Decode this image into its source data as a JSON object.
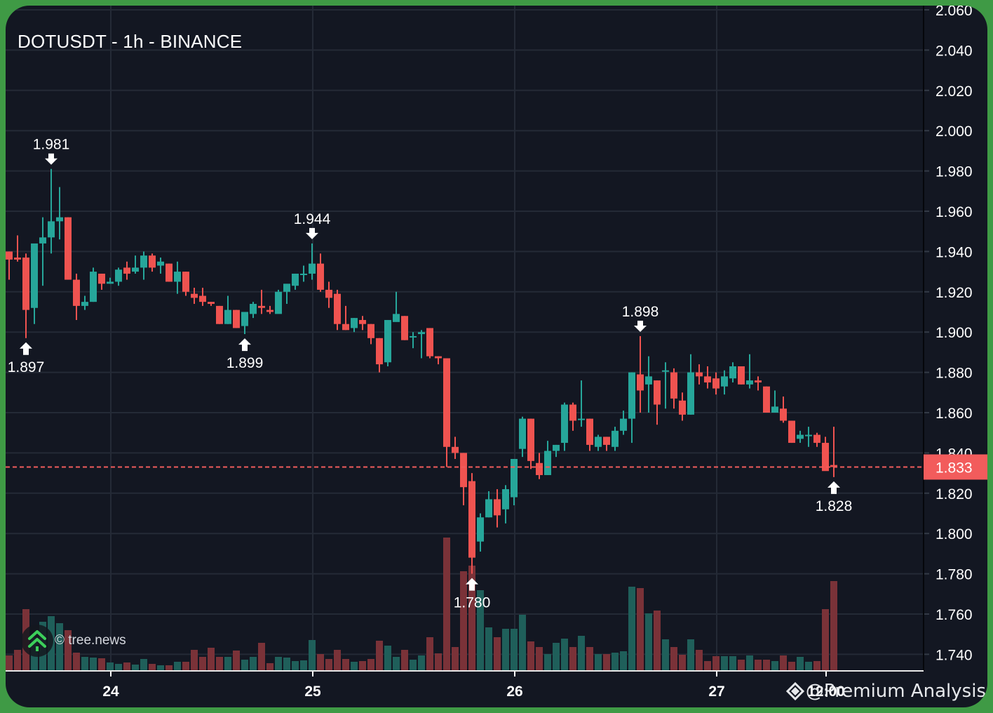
{
  "title": "DOTUSDT - 1h - BINANCE",
  "colors": {
    "background": "#131722",
    "frame": "#3f9a45",
    "up": "#26a69a",
    "down": "#ef5350",
    "up_volume": "#1f5f5a",
    "down_volume": "#7a3238",
    "grid": "#242a36",
    "last_price": "#f25c5c"
  },
  "last_price_label": "1.833",
  "watermark": {
    "text": "© tree.news",
    "icon": "tree-arrows-icon"
  },
  "footer": {
    "text": "@Premium Analysis",
    "icon": "diamond-logo-icon"
  },
  "chart_data": {
    "type": "candlestick",
    "title": "DOTUSDT - 1h - BINANCE",
    "xlabel": "",
    "ylabel": "",
    "ylim": [
      1.734,
      2.062
    ],
    "y_ticks": [
      "2.060",
      "2.040",
      "2.020",
      "2.000",
      "1.980",
      "1.960",
      "1.940",
      "1.920",
      "1.900",
      "1.880",
      "1.860",
      "1.840",
      "1.820",
      "1.800",
      "1.780",
      "1.760",
      "1.740"
    ],
    "x_ticks": [
      {
        "label": "24",
        "index": 12
      },
      {
        "label": "25",
        "index": 36
      },
      {
        "label": "26",
        "index": 60
      },
      {
        "label": "27",
        "index": 84
      },
      {
        "label": "12:00",
        "index": 97
      }
    ],
    "last_price": 1.833,
    "annotations": [
      {
        "label": "1.981",
        "type": "high",
        "index": 5,
        "price": 1.981
      },
      {
        "label": "1.897",
        "type": "low",
        "index": 2,
        "price": 1.897
      },
      {
        "label": "1.944",
        "type": "high",
        "index": 36,
        "price": 1.944
      },
      {
        "label": "1.899",
        "type": "low",
        "index": 28,
        "price": 1.899
      },
      {
        "label": "1.780",
        "type": "low",
        "index": 55,
        "price": 1.78
      },
      {
        "label": "1.898",
        "type": "high",
        "index": 75,
        "price": 1.898
      },
      {
        "label": "1.828",
        "type": "low",
        "index": 98,
        "price": 1.828
      }
    ],
    "candles": [
      {
        "o": 1.936,
        "h": 1.94,
        "l": 1.926,
        "c": 1.94,
        "v": 22,
        "up": false
      },
      {
        "o": 1.937,
        "h": 1.948,
        "l": 1.935,
        "c": 1.936,
        "v": 30,
        "up": false
      },
      {
        "o": 1.937,
        "h": 1.939,
        "l": 1.897,
        "c": 1.911,
        "v": 88,
        "up": false
      },
      {
        "o": 1.912,
        "h": 1.939,
        "l": 1.904,
        "c": 1.944,
        "v": 48,
        "up": true
      },
      {
        "o": 1.944,
        "h": 1.957,
        "l": 1.923,
        "c": 1.947,
        "v": 70,
        "up": true
      },
      {
        "o": 1.947,
        "h": 1.981,
        "l": 1.939,
        "c": 1.955,
        "v": 78,
        "up": true
      },
      {
        "o": 1.955,
        "h": 1.972,
        "l": 1.946,
        "c": 1.957,
        "v": 68,
        "up": true
      },
      {
        "o": 1.957,
        "h": 1.957,
        "l": 1.929,
        "c": 1.926,
        "v": 58,
        "up": false
      },
      {
        "o": 1.926,
        "h": 1.929,
        "l": 1.906,
        "c": 1.913,
        "v": 26,
        "up": false
      },
      {
        "o": 1.913,
        "h": 1.918,
        "l": 1.911,
        "c": 1.915,
        "v": 20,
        "up": true
      },
      {
        "o": 1.915,
        "h": 1.932,
        "l": 1.915,
        "c": 1.93,
        "v": 19,
        "up": true
      },
      {
        "o": 1.929,
        "h": 1.929,
        "l": 1.921,
        "c": 1.924,
        "v": 18,
        "up": false
      },
      {
        "o": 1.924,
        "h": 1.927,
        "l": 1.924,
        "c": 1.925,
        "v": 12,
        "up": true
      },
      {
        "o": 1.925,
        "h": 1.932,
        "l": 1.923,
        "c": 1.931,
        "v": 10,
        "up": true
      },
      {
        "o": 1.929,
        "h": 1.935,
        "l": 1.926,
        "c": 1.932,
        "v": 12,
        "up": false
      },
      {
        "o": 1.93,
        "h": 1.938,
        "l": 1.929,
        "c": 1.932,
        "v": 9,
        "up": true
      },
      {
        "o": 1.932,
        "h": 1.94,
        "l": 1.926,
        "c": 1.938,
        "v": 17,
        "up": true
      },
      {
        "o": 1.938,
        "h": 1.939,
        "l": 1.93,
        "c": 1.932,
        "v": 10,
        "up": false
      },
      {
        "o": 1.933,
        "h": 1.937,
        "l": 1.929,
        "c": 1.935,
        "v": 8,
        "up": true
      },
      {
        "o": 1.934,
        "h": 1.934,
        "l": 1.925,
        "c": 1.925,
        "v": 8,
        "up": false
      },
      {
        "o": 1.925,
        "h": 1.935,
        "l": 1.919,
        "c": 1.93,
        "v": 13,
        "up": true
      },
      {
        "o": 1.93,
        "h": 1.93,
        "l": 1.918,
        "c": 1.92,
        "v": 13,
        "up": false
      },
      {
        "o": 1.919,
        "h": 1.922,
        "l": 1.914,
        "c": 1.917,
        "v": 30,
        "up": false
      },
      {
        "o": 1.918,
        "h": 1.922,
        "l": 1.913,
        "c": 1.915,
        "v": 20,
        "up": false
      },
      {
        "o": 1.915,
        "h": 1.915,
        "l": 1.913,
        "c": 1.914,
        "v": 33,
        "up": false
      },
      {
        "o": 1.913,
        "h": 1.913,
        "l": 1.904,
        "c": 1.904,
        "v": 20,
        "up": false
      },
      {
        "o": 1.904,
        "h": 1.918,
        "l": 1.904,
        "c": 1.911,
        "v": 20,
        "up": true
      },
      {
        "o": 1.911,
        "h": 1.911,
        "l": 1.902,
        "c": 1.902,
        "v": 29,
        "up": false
      },
      {
        "o": 1.903,
        "h": 1.91,
        "l": 1.899,
        "c": 1.91,
        "v": 16,
        "up": true
      },
      {
        "o": 1.909,
        "h": 1.915,
        "l": 1.907,
        "c": 1.914,
        "v": 20,
        "up": true
      },
      {
        "o": 1.912,
        "h": 1.921,
        "l": 1.909,
        "c": 1.913,
        "v": 40,
        "up": false
      },
      {
        "o": 1.911,
        "h": 1.913,
        "l": 1.909,
        "c": 1.91,
        "v": 11,
        "up": false
      },
      {
        "o": 1.909,
        "h": 1.921,
        "l": 1.911,
        "c": 1.92,
        "v": 20,
        "up": true
      },
      {
        "o": 1.92,
        "h": 1.922,
        "l": 1.914,
        "c": 1.924,
        "v": 19,
        "up": true
      },
      {
        "o": 1.923,
        "h": 1.929,
        "l": 1.921,
        "c": 1.929,
        "v": 14,
        "up": true
      },
      {
        "o": 1.929,
        "h": 1.933,
        "l": 1.925,
        "c": 1.929,
        "v": 15,
        "up": true
      },
      {
        "o": 1.929,
        "h": 1.944,
        "l": 1.926,
        "c": 1.934,
        "v": 44,
        "up": true
      },
      {
        "o": 1.934,
        "h": 1.939,
        "l": 1.92,
        "c": 1.921,
        "v": 24,
        "up": false
      },
      {
        "o": 1.921,
        "h": 1.925,
        "l": 1.912,
        "c": 1.917,
        "v": 17,
        "up": false
      },
      {
        "o": 1.919,
        "h": 1.921,
        "l": 1.901,
        "c": 1.904,
        "v": 30,
        "up": false
      },
      {
        "o": 1.904,
        "h": 1.913,
        "l": 1.901,
        "c": 1.901,
        "v": 17,
        "up": false
      },
      {
        "o": 1.902,
        "h": 1.907,
        "l": 1.9,
        "c": 1.907,
        "v": 13,
        "up": true
      },
      {
        "o": 1.906,
        "h": 1.908,
        "l": 1.901,
        "c": 1.904,
        "v": 14,
        "up": false
      },
      {
        "o": 1.904,
        "h": 1.904,
        "l": 1.894,
        "c": 1.897,
        "v": 17,
        "up": false
      },
      {
        "o": 1.897,
        "h": 1.897,
        "l": 1.88,
        "c": 1.884,
        "v": 43,
        "up": false
      },
      {
        "o": 1.885,
        "h": 1.906,
        "l": 1.883,
        "c": 1.906,
        "v": 36,
        "up": true
      },
      {
        "o": 1.905,
        "h": 1.92,
        "l": 1.906,
        "c": 1.909,
        "v": 20,
        "up": true
      },
      {
        "o": 1.908,
        "h": 1.908,
        "l": 1.896,
        "c": 1.896,
        "v": 30,
        "up": false
      },
      {
        "o": 1.898,
        "h": 1.9,
        "l": 1.892,
        "c": 1.898,
        "v": 16,
        "up": true
      },
      {
        "o": 1.899,
        "h": 1.901,
        "l": 1.887,
        "c": 1.9,
        "v": 22,
        "up": true
      },
      {
        "o": 1.902,
        "h": 1.902,
        "l": 1.887,
        "c": 1.888,
        "v": 48,
        "up": false
      },
      {
        "o": 1.888,
        "h": 1.888,
        "l": 1.884,
        "c": 1.887,
        "v": 25,
        "up": false
      },
      {
        "o": 1.887,
        "h": 1.887,
        "l": 1.833,
        "c": 1.843,
        "v": 190,
        "up": false
      },
      {
        "o": 1.843,
        "h": 1.848,
        "l": 1.837,
        "c": 1.84,
        "v": 34,
        "up": false
      },
      {
        "o": 1.84,
        "h": 1.84,
        "l": 1.814,
        "c": 1.823,
        "v": 142,
        "up": false
      },
      {
        "o": 1.826,
        "h": 1.83,
        "l": 1.78,
        "c": 1.788,
        "v": 150,
        "up": false
      },
      {
        "o": 1.796,
        "h": 1.81,
        "l": 1.791,
        "c": 1.808,
        "v": 115,
        "up": true
      },
      {
        "o": 1.808,
        "h": 1.821,
        "l": 1.808,
        "c": 1.817,
        "v": 62,
        "up": true
      },
      {
        "o": 1.817,
        "h": 1.822,
        "l": 1.803,
        "c": 1.809,
        "v": 48,
        "up": false
      },
      {
        "o": 1.812,
        "h": 1.824,
        "l": 1.805,
        "c": 1.822,
        "v": 60,
        "up": true
      },
      {
        "o": 1.818,
        "h": 1.833,
        "l": 1.814,
        "c": 1.837,
        "v": 60,
        "up": true
      },
      {
        "o": 1.842,
        "h": 1.858,
        "l": 1.838,
        "c": 1.857,
        "v": 80,
        "up": true
      },
      {
        "o": 1.857,
        "h": 1.857,
        "l": 1.832,
        "c": 1.836,
        "v": 42,
        "up": false
      },
      {
        "o": 1.835,
        "h": 1.84,
        "l": 1.827,
        "c": 1.829,
        "v": 34,
        "up": false
      },
      {
        "o": 1.829,
        "h": 1.846,
        "l": 1.829,
        "c": 1.841,
        "v": 24,
        "up": true
      },
      {
        "o": 1.841,
        "h": 1.844,
        "l": 1.838,
        "c": 1.844,
        "v": 40,
        "up": true
      },
      {
        "o": 1.845,
        "h": 1.865,
        "l": 1.841,
        "c": 1.864,
        "v": 46,
        "up": true
      },
      {
        "o": 1.864,
        "h": 1.865,
        "l": 1.851,
        "c": 1.856,
        "v": 34,
        "up": false
      },
      {
        "o": 1.857,
        "h": 1.876,
        "l": 1.853,
        "c": 1.857,
        "v": 50,
        "up": true
      },
      {
        "o": 1.857,
        "h": 1.857,
        "l": 1.841,
        "c": 1.844,
        "v": 34,
        "up": false
      },
      {
        "o": 1.843,
        "h": 1.849,
        "l": 1.841,
        "c": 1.848,
        "v": 24,
        "up": true
      },
      {
        "o": 1.848,
        "h": 1.848,
        "l": 1.841,
        "c": 1.844,
        "v": 24,
        "up": false
      },
      {
        "o": 1.843,
        "h": 1.853,
        "l": 1.841,
        "c": 1.851,
        "v": 26,
        "up": true
      },
      {
        "o": 1.851,
        "h": 1.861,
        "l": 1.849,
        "c": 1.857,
        "v": 28,
        "up": true
      },
      {
        "o": 1.857,
        "h": 1.88,
        "l": 1.845,
        "c": 1.88,
        "v": 120,
        "up": true
      },
      {
        "o": 1.879,
        "h": 1.898,
        "l": 1.86,
        "c": 1.871,
        "v": 118,
        "up": false
      },
      {
        "o": 1.874,
        "h": 1.888,
        "l": 1.86,
        "c": 1.878,
        "v": 82,
        "up": true
      },
      {
        "o": 1.876,
        "h": 1.876,
        "l": 1.854,
        "c": 1.864,
        "v": 86,
        "up": false
      },
      {
        "o": 1.881,
        "h": 1.885,
        "l": 1.862,
        "c": 1.881,
        "v": 45,
        "up": true
      },
      {
        "o": 1.88,
        "h": 1.882,
        "l": 1.862,
        "c": 1.867,
        "v": 34,
        "up": false
      },
      {
        "o": 1.866,
        "h": 1.87,
        "l": 1.856,
        "c": 1.859,
        "v": 23,
        "up": false
      },
      {
        "o": 1.859,
        "h": 1.889,
        "l": 1.859,
        "c": 1.88,
        "v": 45,
        "up": true
      },
      {
        "o": 1.88,
        "h": 1.884,
        "l": 1.874,
        "c": 1.878,
        "v": 30,
        "up": false
      },
      {
        "o": 1.878,
        "h": 1.883,
        "l": 1.872,
        "c": 1.875,
        "v": 14,
        "up": false
      },
      {
        "o": 1.877,
        "h": 1.88,
        "l": 1.869,
        "c": 1.872,
        "v": 21,
        "up": false
      },
      {
        "o": 1.873,
        "h": 1.881,
        "l": 1.869,
        "c": 1.878,
        "v": 21,
        "up": true
      },
      {
        "o": 1.877,
        "h": 1.885,
        "l": 1.875,
        "c": 1.883,
        "v": 21,
        "up": true
      },
      {
        "o": 1.883,
        "h": 1.883,
        "l": 1.874,
        "c": 1.874,
        "v": 16,
        "up": false
      },
      {
        "o": 1.874,
        "h": 1.889,
        "l": 1.872,
        "c": 1.876,
        "v": 22,
        "up": true
      },
      {
        "o": 1.876,
        "h": 1.878,
        "l": 1.871,
        "c": 1.875,
        "v": 16,
        "up": false
      },
      {
        "o": 1.873,
        "h": 1.873,
        "l": 1.863,
        "c": 1.86,
        "v": 16,
        "up": false
      },
      {
        "o": 1.863,
        "h": 1.871,
        "l": 1.861,
        "c": 1.86,
        "v": 14,
        "up": true
      },
      {
        "o": 1.862,
        "h": 1.868,
        "l": 1.855,
        "c": 1.856,
        "v": 22,
        "up": false
      },
      {
        "o": 1.856,
        "h": 1.856,
        "l": 1.845,
        "c": 1.845,
        "v": 13,
        "up": false
      },
      {
        "o": 1.847,
        "h": 1.851,
        "l": 1.845,
        "c": 1.849,
        "v": 20,
        "up": true
      },
      {
        "o": 1.849,
        "h": 1.853,
        "l": 1.843,
        "c": 1.849,
        "v": 13,
        "up": true
      },
      {
        "o": 1.849,
        "h": 1.85,
        "l": 1.843,
        "c": 1.845,
        "v": 14,
        "up": false
      },
      {
        "o": 1.845,
        "h": 1.848,
        "l": 1.832,
        "c": 1.831,
        "v": 88,
        "up": false
      },
      {
        "o": 1.834,
        "h": 1.853,
        "l": 1.828,
        "c": 1.833,
        "v": 128,
        "up": false
      }
    ]
  }
}
